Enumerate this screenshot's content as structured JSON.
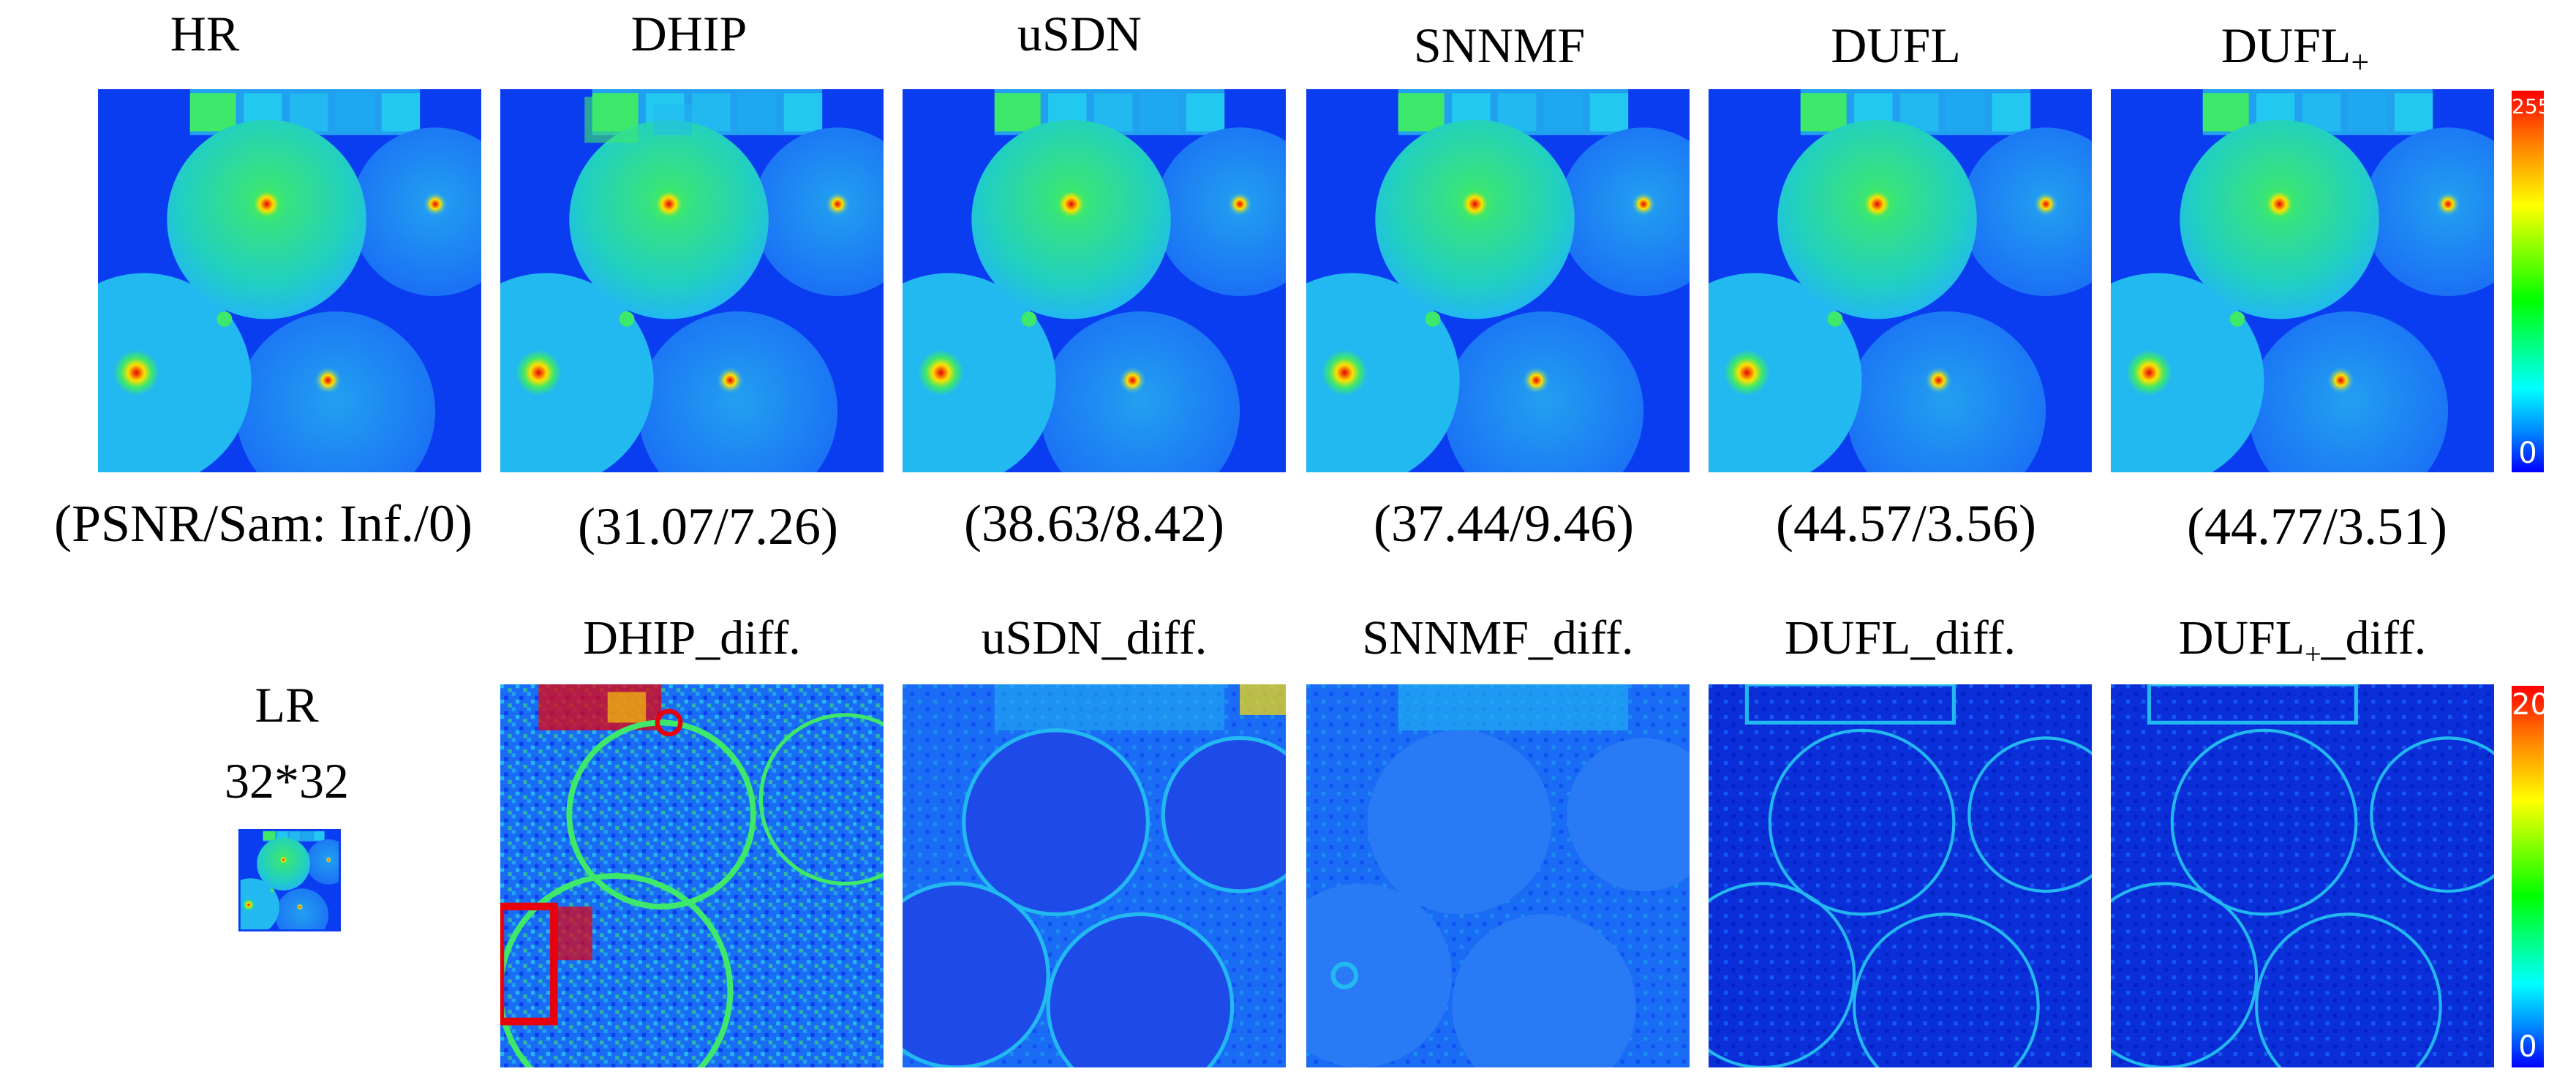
{
  "top_row": {
    "titles": [
      "HR",
      "DHIP",
      "uSDN",
      "SNNMF",
      "DUFL"
    ],
    "dufl_plus_title": "DUFL",
    "dufl_plus_subscript": "+",
    "metrics": [
      "(PSNR/Sam: Inf./0)",
      "(31.07/7.26)",
      "(38.63/8.42)",
      "(37.44/9.46)",
      "(44.57/3.56)",
      "(44.77/3.51)"
    ],
    "colorbar": {
      "max": "255",
      "min": "0"
    }
  },
  "bottom_row": {
    "lr_title": "LR",
    "lr_size": "32*32",
    "diff_titles": [
      "DHIP_diff.",
      "uSDN_diff.",
      "SNNMF_diff.",
      "DUFL_diff."
    ],
    "dufl_plus_diff": {
      "prefix": "DUFL",
      "subscript": "+",
      "suffix": "_diff."
    },
    "colorbar": {
      "max": "20",
      "min": "0"
    }
  },
  "colors": {
    "background_blue": "#0a3cf0",
    "mid_blue": "#1a6cf5",
    "balloon_cyan": "#22b8f0",
    "highlight_green": "#3ee86a",
    "hotspot_red": "#e8000a",
    "hotspot_yellow": "#ffe000"
  }
}
